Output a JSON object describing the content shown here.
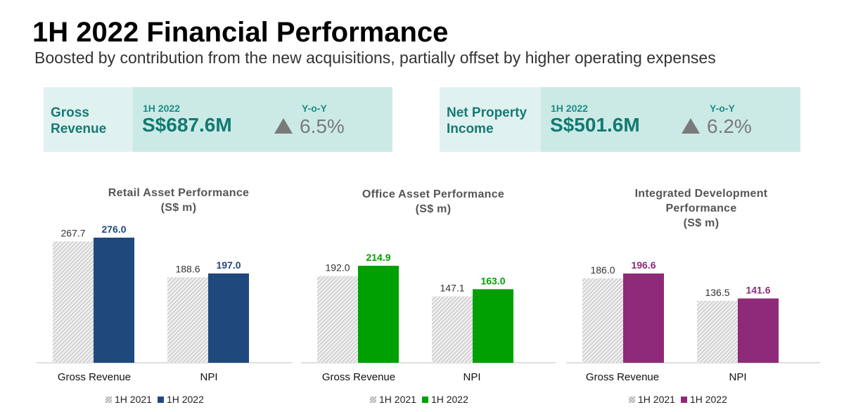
{
  "header": {
    "title": "1H 2022 Financial Performance",
    "subtitle": "Boosted by contribution from the new acquisitions, partially offset by higher operating expenses"
  },
  "kpis": [
    {
      "label": "Gross Revenue",
      "period": "1H 2022",
      "value": "S$687.6M",
      "yoy_label": "Y-o-Y",
      "change": "6.5%",
      "direction": "up"
    },
    {
      "label": "Net Property Income",
      "period": "1H 2022",
      "value": "S$501.6M",
      "yoy_label": "Y-o-Y",
      "change": "6.2%",
      "direction": "up"
    }
  ],
  "legend": {
    "prev": "1H 2021",
    "curr": "1H 2022"
  },
  "colors": {
    "retail": "#1f497d",
    "office": "#00a000",
    "integrated": "#8e2a77",
    "hatch": "#c8c8c8",
    "kpi_text": "#157a74"
  },
  "chart_data": [
    {
      "type": "bar",
      "title_lines": [
        "Retail Asset Performance",
        "(S$ m)"
      ],
      "categories": [
        "Gross Revenue",
        "NPI"
      ],
      "series": [
        {
          "name": "1H 2021",
          "values": [
            267.7,
            188.6
          ]
        },
        {
          "name": "1H 2022",
          "values": [
            276.0,
            197.0
          ]
        }
      ],
      "ylim": [
        0,
        276.0
      ],
      "grid": false,
      "legend": "bottom"
    },
    {
      "type": "bar",
      "title_lines": [
        "Office Asset Performance",
        "(S$ m)"
      ],
      "categories": [
        "Gross Revenue",
        "NPI"
      ],
      "series": [
        {
          "name": "1H 2021",
          "values": [
            192.0,
            147.1
          ]
        },
        {
          "name": "1H 2022",
          "values": [
            214.9,
            163.0
          ]
        }
      ],
      "ylim": [
        0,
        214.9
      ],
      "grid": false,
      "legend": "bottom"
    },
    {
      "type": "bar",
      "title_lines": [
        "Integrated Development",
        "Performance",
        "(S$ m)"
      ],
      "categories": [
        "Gross Revenue",
        "NPI"
      ],
      "series": [
        {
          "name": "1H 2021",
          "values": [
            186.0,
            136.5
          ]
        },
        {
          "name": "1H 2022",
          "values": [
            196.6,
            141.6
          ]
        }
      ],
      "ylim": [
        0,
        196.6
      ],
      "grid": false,
      "legend": "bottom"
    }
  ]
}
